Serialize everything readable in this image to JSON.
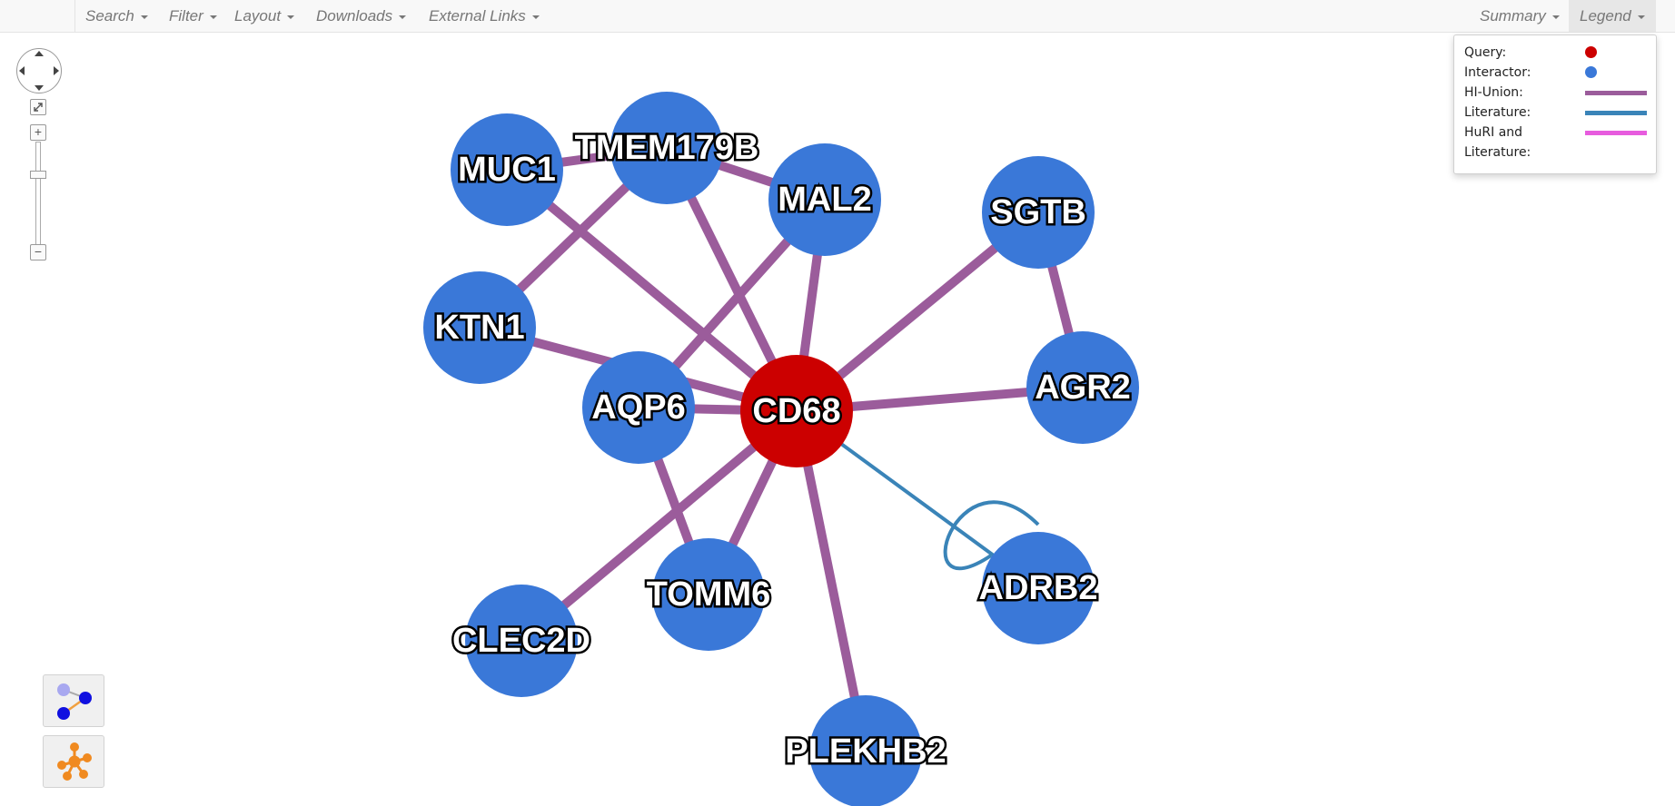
{
  "navbar": {
    "menus": [
      {
        "label": "Search"
      },
      {
        "label": "Filter"
      },
      {
        "label": "Layout"
      },
      {
        "label": "Downloads"
      },
      {
        "label": "External Links"
      }
    ],
    "summary_label": "Summary",
    "legend_label": "Legend"
  },
  "legend": {
    "query_label": "Query:",
    "interactor_label": "Interactor:",
    "hi_union_label": "HI-Union:",
    "literature_label": "Literature:",
    "huri_lit_label_1": "HuRI and",
    "huri_lit_label_2": "Literature:",
    "colors": {
      "query": "#cc0000",
      "interactor": "#3a78d8",
      "hi_union": "#9b5c9b",
      "literature": "#3a84b8",
      "huri_literature": "#e75cde"
    }
  },
  "zoom_controls": {
    "zoom_in": "+",
    "zoom_out": "−",
    "fit_icon": "fit-screen-icon"
  },
  "tools": [
    {
      "icon": "edge-draw-icon"
    },
    {
      "icon": "network-layout-icon"
    }
  ],
  "graph": {
    "nodes": [
      {
        "id": "CD68",
        "label": "CD68",
        "type": "query"
      },
      {
        "id": "MUC1",
        "label": "MUC1",
        "type": "interactor"
      },
      {
        "id": "TMEM179B",
        "label": "TMEM179B",
        "type": "interactor"
      },
      {
        "id": "MAL2",
        "label": "MAL2",
        "type": "interactor"
      },
      {
        "id": "SGTB",
        "label": "SGTB",
        "type": "interactor"
      },
      {
        "id": "KTN1",
        "label": "KTN1",
        "type": "interactor"
      },
      {
        "id": "AGR2",
        "label": "AGR2",
        "type": "interactor"
      },
      {
        "id": "AQP6",
        "label": "AQP6",
        "type": "interactor"
      },
      {
        "id": "ADRB2",
        "label": "ADRB2",
        "type": "interactor"
      },
      {
        "id": "TOMM6",
        "label": "TOMM6",
        "type": "interactor"
      },
      {
        "id": "CLEC2D",
        "label": "CLEC2D",
        "type": "interactor"
      },
      {
        "id": "PLEKHB2",
        "label": "PLEKHB2",
        "type": "interactor"
      }
    ],
    "edges": [
      {
        "source": "MUC1",
        "target": "TMEM179B",
        "type": "hi_union"
      },
      {
        "source": "MUC1",
        "target": "CD68",
        "type": "hi_union"
      },
      {
        "source": "TMEM179B",
        "target": "MAL2",
        "type": "hi_union"
      },
      {
        "source": "TMEM179B",
        "target": "KTN1",
        "type": "hi_union"
      },
      {
        "source": "TMEM179B",
        "target": "CD68",
        "type": "hi_union"
      },
      {
        "source": "MAL2",
        "target": "AQP6",
        "type": "hi_union"
      },
      {
        "source": "MAL2",
        "target": "CD68",
        "type": "hi_union"
      },
      {
        "source": "SGTB",
        "target": "CD68",
        "type": "hi_union"
      },
      {
        "source": "SGTB",
        "target": "AGR2",
        "type": "hi_union"
      },
      {
        "source": "KTN1",
        "target": "CD68",
        "type": "hi_union"
      },
      {
        "source": "AGR2",
        "target": "CD68",
        "type": "hi_union"
      },
      {
        "source": "AQP6",
        "target": "CD68",
        "type": "hi_union"
      },
      {
        "source": "AQP6",
        "target": "TOMM6",
        "type": "hi_union"
      },
      {
        "source": "TOMM6",
        "target": "CD68",
        "type": "hi_union"
      },
      {
        "source": "CLEC2D",
        "target": "CD68",
        "type": "hi_union"
      },
      {
        "source": "PLEKHB2",
        "target": "CD68",
        "type": "hi_union"
      },
      {
        "source": "ADRB2",
        "target": "CD68",
        "type": "literature"
      },
      {
        "source": "ADRB2",
        "target": "ADRB2",
        "type": "literature"
      }
    ]
  }
}
